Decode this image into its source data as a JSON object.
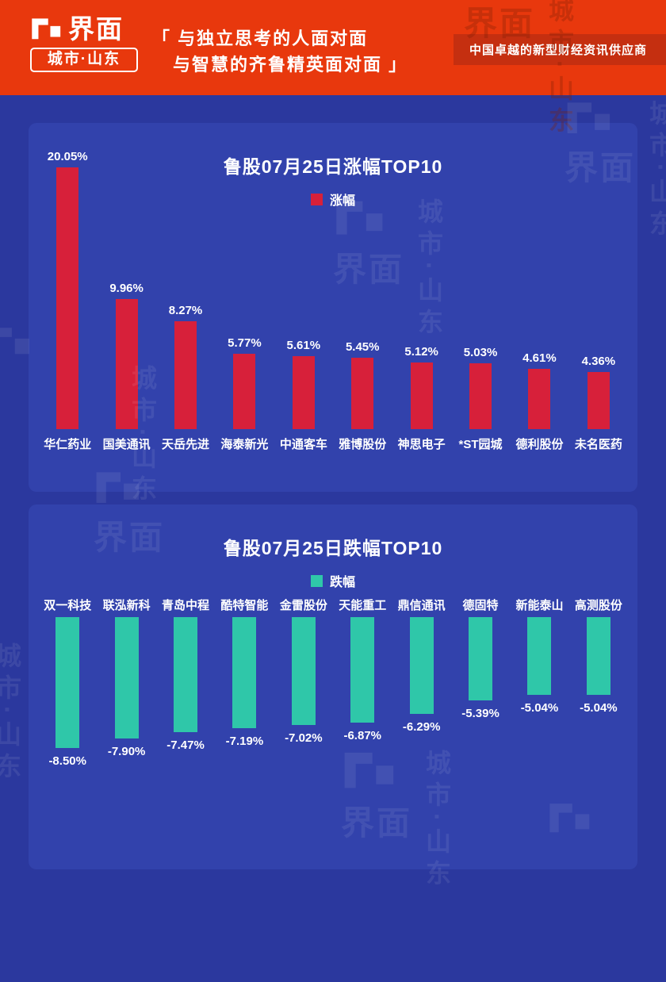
{
  "header": {
    "logo_title": "界面",
    "logo_subtitle": "城市·山东",
    "tagline_line1": "「 与独立思考的人面对面",
    "tagline_line2": "与智慧的齐鲁精英面对面 」",
    "badge": "中国卓越的新型财经资讯供应商"
  },
  "watermark": {
    "logo": "界面",
    "subtitle": "城市·山东"
  },
  "colors": {
    "header_bg": "#E8380D",
    "badge_bg": "#C52F10",
    "page_bg": "#2B389E",
    "panel_bg": "#3242AC",
    "text": "#FFFFFF"
  },
  "chart_data": [
    {
      "type": "bar",
      "title": "鲁股07月25日涨幅TOP10",
      "legend": "涨幅",
      "direction": "up",
      "bar_color": "#D7203A",
      "categories": [
        "华仁药业",
        "国美通讯",
        "天岳先进",
        "海泰新光",
        "中通客车",
        "雅博股份",
        "神思电子",
        "*ST园城",
        "德利股份",
        "未名医药"
      ],
      "values": [
        20.05,
        9.96,
        8.27,
        5.77,
        5.61,
        5.45,
        5.12,
        5.03,
        4.61,
        4.36
      ],
      "labels": [
        "20.05%",
        "9.96%",
        "8.27%",
        "5.77%",
        "5.61%",
        "5.45%",
        "5.12%",
        "5.03%",
        "4.61%",
        "4.36%"
      ],
      "ylim": [
        0,
        20.05
      ],
      "grid": false,
      "legend_position": "top-center"
    },
    {
      "type": "bar",
      "title": "鲁股07月25日跌幅TOP10",
      "legend": "跌幅",
      "direction": "down",
      "bar_color": "#2FC7A9",
      "categories": [
        "双一科技",
        "联泓新科",
        "青岛中程",
        "酷特智能",
        "金雷股份",
        "天能重工",
        "鼎信通讯",
        "德固特",
        "新能泰山",
        "高测股份"
      ],
      "values": [
        -8.5,
        -7.9,
        -7.47,
        -7.19,
        -7.02,
        -6.87,
        -6.29,
        -5.39,
        -5.04,
        -5.04
      ],
      "labels": [
        "-8.50%",
        "-7.90%",
        "-7.47%",
        "-7.19%",
        "-7.02%",
        "-6.87%",
        "-6.29%",
        "-5.39%",
        "-5.04%",
        "-5.04%"
      ],
      "ylim": [
        -8.5,
        0
      ],
      "grid": false,
      "legend_position": "top-center"
    }
  ]
}
